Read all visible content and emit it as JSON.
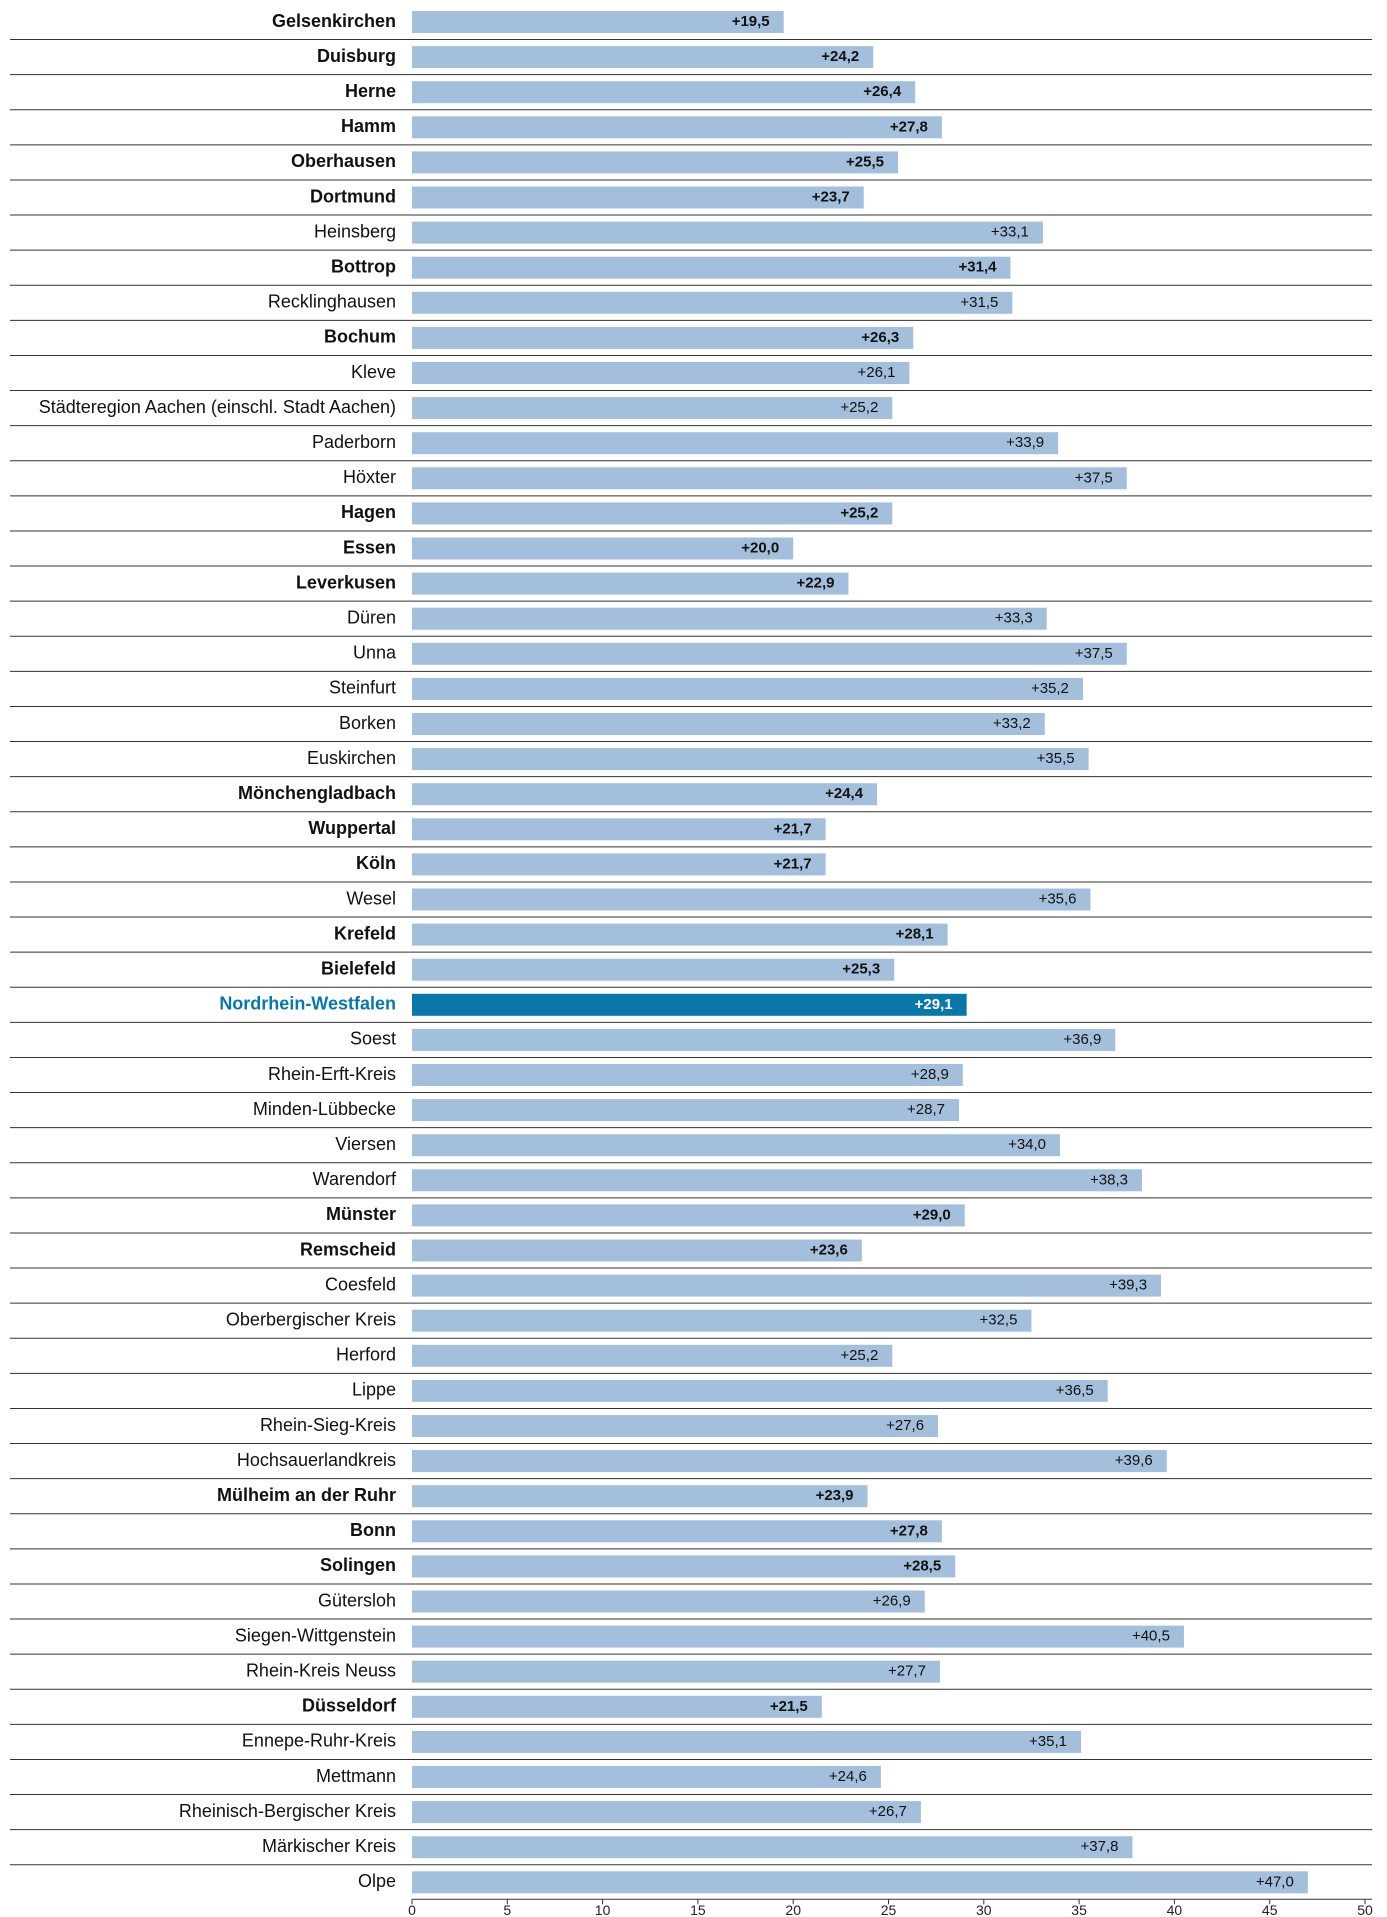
{
  "chart_data": {
    "type": "bar",
    "orientation": "horizontal",
    "categories": [
      "Gelsenkirchen",
      "Duisburg",
      "Herne",
      "Hamm",
      "Oberhausen",
      "Dortmund",
      "Heinsberg",
      "Bottrop",
      "Recklinghausen",
      "Bochum",
      "Kleve",
      "Städteregion Aachen (einschl. Stadt Aachen)",
      "Paderborn",
      "Höxter",
      "Hagen",
      "Essen",
      "Leverkusen",
      "Düren",
      "Unna",
      "Steinfurt",
      "Borken",
      "Euskirchen",
      "Mönchengladbach",
      "Wuppertal",
      "Köln",
      "Wesel",
      "Krefeld",
      "Bielefeld",
      "Nordrhein-Westfalen",
      "Soest",
      "Rhein-Erft-Kreis",
      "Minden-Lübbecke",
      "Viersen",
      "Warendorf",
      "Münster",
      "Remscheid",
      "Coesfeld",
      "Oberbergischer Kreis",
      "Herford",
      "Lippe",
      "Rhein-Sieg-Kreis",
      "Hochsauerlandkreis",
      "Mülheim an der Ruhr",
      "Bonn",
      "Solingen",
      "Gütersloh",
      "Siegen-Wittgenstein",
      "Rhein-Kreis Neuss",
      "Düsseldorf",
      "Ennepe-Ruhr-Kreis",
      "Mettmann",
      "Rheinisch-Bergischer Kreis",
      "Märkischer Kreis",
      "Olpe"
    ],
    "values": [
      19.5,
      24.2,
      26.4,
      27.8,
      25.5,
      23.7,
      33.1,
      31.4,
      31.5,
      26.3,
      26.1,
      25.2,
      33.9,
      37.5,
      25.2,
      20.0,
      22.9,
      33.3,
      37.5,
      35.2,
      33.2,
      35.5,
      24.4,
      21.7,
      21.7,
      35.6,
      28.1,
      25.3,
      29.1,
      36.9,
      28.9,
      28.7,
      34.0,
      38.3,
      29.0,
      23.6,
      39.3,
      32.5,
      25.2,
      36.5,
      27.6,
      39.6,
      23.9,
      27.8,
      28.5,
      26.9,
      40.5,
      27.7,
      21.5,
      35.1,
      24.6,
      26.7,
      37.8,
      47.0
    ],
    "value_labels": [
      "+19,5",
      "+24,2",
      "+26,4",
      "+27,8",
      "+25,5",
      "+23,7",
      "+33,1",
      "+31,4",
      "+31,5",
      "+26,3",
      "+26,1",
      "+25,2",
      "+33,9",
      "+37,5",
      "+25,2",
      "+20,0",
      "+22,9",
      "+33,3",
      "+37,5",
      "+35,2",
      "+33,2",
      "+35,5",
      "+24,4",
      "+21,7",
      "+21,7",
      "+35,6",
      "+28,1",
      "+25,3",
      "+29,1",
      "+36,9",
      "+28,9",
      "+28,7",
      "+34,0",
      "+38,3",
      "+29,0",
      "+23,6",
      "+39,3",
      "+32,5",
      "+25,2",
      "+36,5",
      "+27,6",
      "+39,6",
      "+23,9",
      "+27,8",
      "+28,5",
      "+26,9",
      "+40,5",
      "+27,7",
      "+21,5",
      "+35,1",
      "+24,6",
      "+26,7",
      "+37,8",
      "+47,0"
    ],
    "bold": [
      true,
      true,
      true,
      true,
      true,
      true,
      false,
      true,
      false,
      true,
      false,
      false,
      false,
      false,
      true,
      true,
      true,
      false,
      false,
      false,
      false,
      false,
      true,
      true,
      true,
      false,
      true,
      true,
      true,
      false,
      false,
      false,
      false,
      false,
      true,
      true,
      false,
      false,
      false,
      false,
      false,
      false,
      true,
      true,
      true,
      false,
      false,
      false,
      true,
      false,
      false,
      false,
      false,
      false
    ],
    "color": "#a3bfdc",
    "highlight": {
      "index": 28,
      "color": "#0a77a8"
    },
    "xlim": [
      0,
      50
    ],
    "xticks": [
      0,
      5,
      10,
      15,
      20,
      25,
      30,
      35,
      40,
      45,
      50
    ]
  }
}
